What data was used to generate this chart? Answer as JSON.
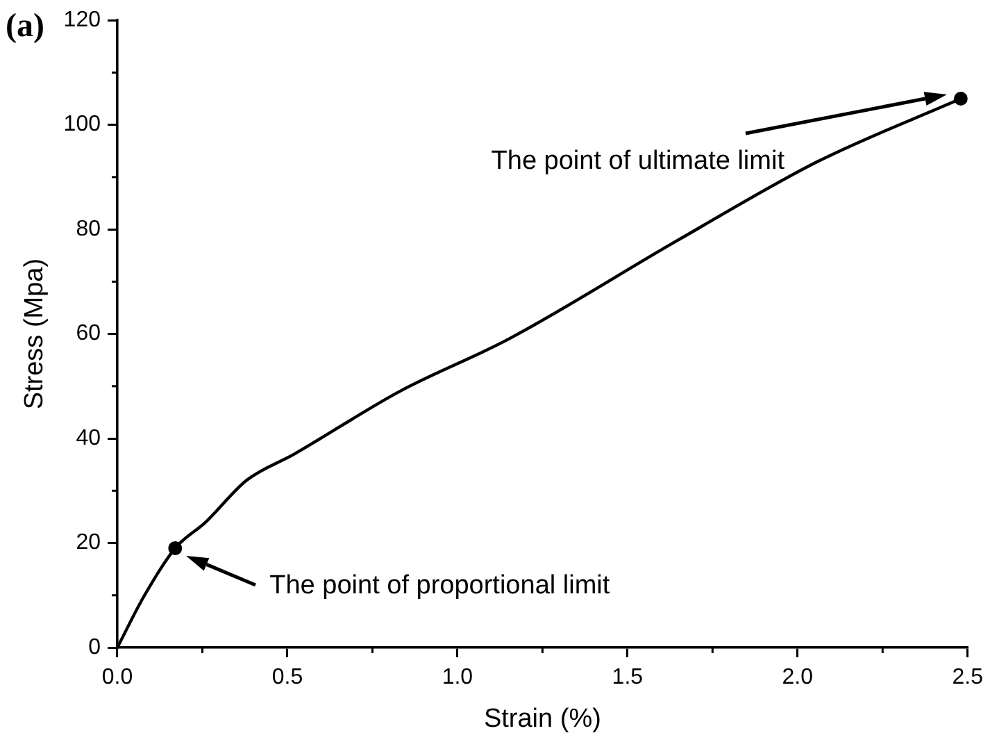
{
  "chart_data": {
    "type": "line",
    "xlabel": "Strain (%)",
    "ylabel": "Stress (Mpa)",
    "x": [
      0,
      0.08,
      0.17,
      0.26,
      0.38,
      0.52,
      0.83,
      1.15,
      1.65,
      2.06,
      2.48
    ],
    "series": [
      {
        "color": "#000000",
        "values": [
          0,
          10,
          19,
          24,
          32,
          37,
          49,
          59,
          78,
          93,
          105
        ]
      },
      {
        "type": "scatter",
        "color": "#000000",
        "x": [
          0.17,
          2.48
        ],
        "values": [
          19,
          105
        ],
        "marker": "circle"
      }
    ],
    "xlim": [
      0,
      2.5
    ],
    "xticks": [
      {
        "value": 0,
        "label": "0.0"
      },
      {
        "value": 0.5,
        "label": "0.5"
      },
      {
        "value": 1,
        "label": "1.0"
      },
      {
        "value": 1.5,
        "label": "1.5"
      },
      {
        "value": 2,
        "label": "2.0"
      },
      {
        "value": 2.5,
        "label": "2.5"
      }
    ],
    "ylim": [
      0,
      120
    ],
    "yticks": [
      0,
      20,
      40,
      60,
      80,
      100,
      120
    ],
    "grid": false,
    "legend": false,
    "marker": "none",
    "line_style": "solid",
    "annotations": [
      "(a)",
      "The point of proportional limit",
      "The point of ultimate limit"
    ]
  }
}
